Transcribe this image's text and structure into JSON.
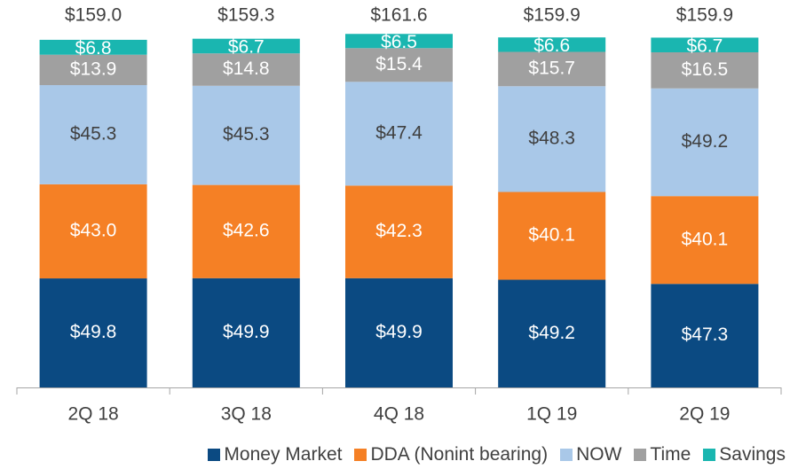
{
  "chart_data": {
    "type": "stacked_bar",
    "categories": [
      "2Q 18",
      "3Q 18",
      "4Q 18",
      "1Q 19",
      "2Q 19"
    ],
    "series": [
      {
        "name": "Money Market",
        "color": "#0b4a82",
        "values": [
          49.8,
          49.9,
          49.9,
          49.2,
          47.3
        ],
        "value_labels": [
          "$49.8",
          "$49.9",
          "$49.9",
          "$49.2",
          "$47.3"
        ]
      },
      {
        "name": "DDA (Nonint bearing)",
        "color": "#f58025",
        "values": [
          43.0,
          42.6,
          42.3,
          40.1,
          40.1
        ],
        "value_labels": [
          "$43.0",
          "$42.6",
          "$42.3",
          "$40.1",
          "$40.1"
        ]
      },
      {
        "name": "NOW",
        "color": "#a9c8e8",
        "values": [
          45.3,
          45.3,
          47.4,
          48.3,
          49.2
        ],
        "value_labels": [
          "$45.3",
          "$45.3",
          "$47.4",
          "$48.3",
          "$49.2"
        ]
      },
      {
        "name": "Time",
        "color": "#a0a0a0",
        "values": [
          13.9,
          14.8,
          15.4,
          15.7,
          16.5
        ],
        "value_labels": [
          "$13.9",
          "$14.8",
          "$15.4",
          "$15.7",
          "$16.5"
        ]
      },
      {
        "name": "Savings",
        "color": "#1ab6b0",
        "values": [
          6.8,
          6.7,
          6.5,
          6.6,
          6.7
        ],
        "value_labels": [
          "$6.8",
          "$6.7",
          "$6.5",
          "$6.6",
          "$6.7"
        ]
      }
    ],
    "totals": [
      159.0,
      159.3,
      161.6,
      159.9,
      159.9
    ],
    "total_labels": [
      "$159.0",
      "$159.3",
      "$161.6",
      "$159.9",
      "$159.9"
    ]
  }
}
